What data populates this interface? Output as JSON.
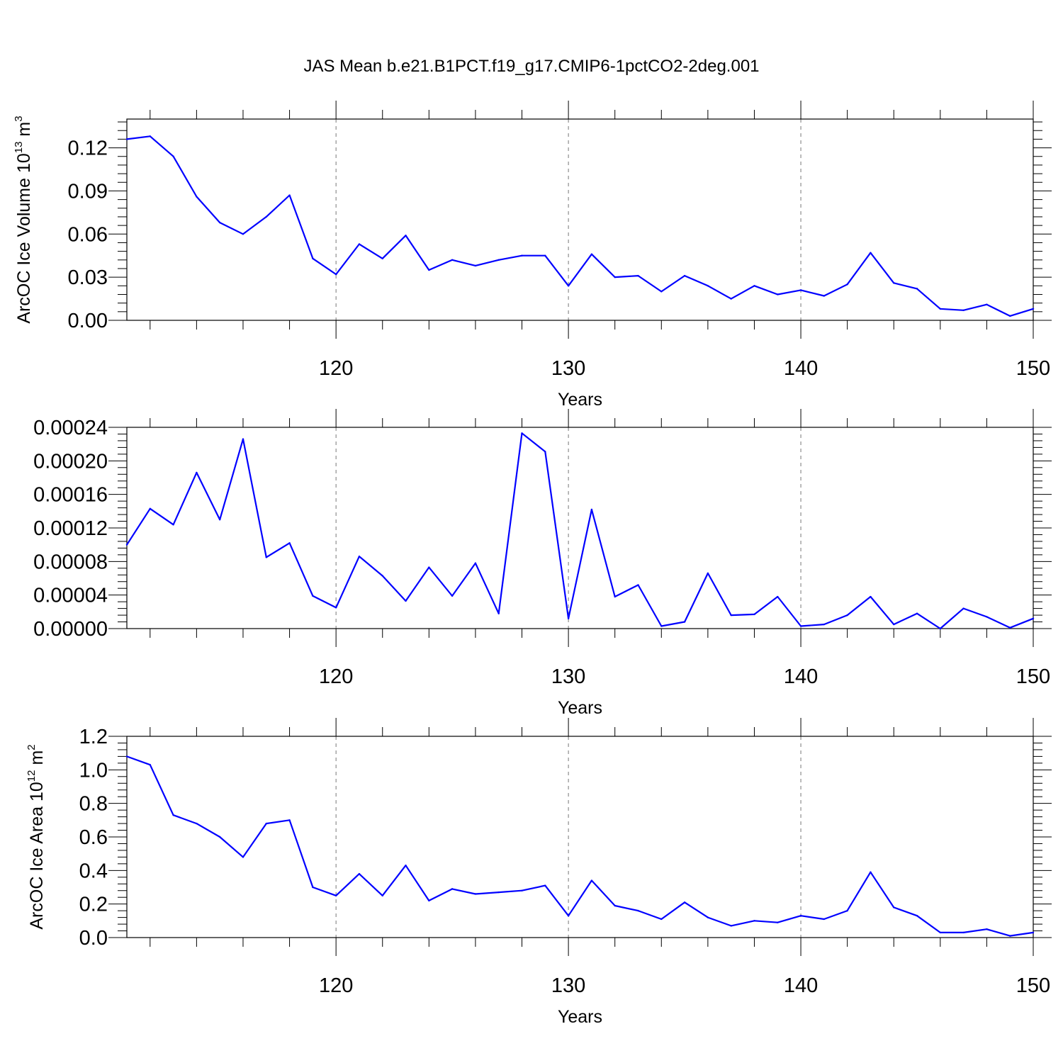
{
  "title": "JAS Mean b.e21.B1PCT.f19_g17.CMIP6-1pctCO2-2deg.001",
  "colors": {
    "line": "#0000ff",
    "axis": "#000000",
    "grid": "#777777"
  },
  "chart_data": [
    {
      "type": "line",
      "xlabel": "Years",
      "ylabel": {
        "prefix": "ArcOC Ice Volume 10",
        "exp": "13",
        "unit": " m",
        "unit_exp": "3"
      },
      "xlim": [
        111,
        150
      ],
      "ylim": [
        0,
        0.14
      ],
      "xticks": [
        120,
        130,
        140,
        150
      ],
      "xtick_labels": [
        "120",
        "130",
        "140",
        "150"
      ],
      "yticks": [
        0,
        0.03,
        0.06,
        0.09,
        0.12
      ],
      "ytick_labels": [
        "0.00",
        "0.03",
        "0.06",
        "0.09",
        "0.12"
      ],
      "grid": "dashed vertical lines at 120, 130, 140",
      "x": [
        111,
        112,
        113,
        114,
        115,
        116,
        117,
        118,
        119,
        120,
        121,
        122,
        123,
        124,
        125,
        126,
        127,
        128,
        129,
        130,
        131,
        132,
        133,
        134,
        135,
        136,
        137,
        138,
        139,
        140,
        141,
        142,
        143,
        144,
        145,
        146,
        147,
        148,
        149,
        150
      ],
      "values": [
        0.126,
        0.128,
        0.114,
        0.086,
        0.068,
        0.06,
        0.072,
        0.087,
        0.043,
        0.032,
        0.053,
        0.043,
        0.059,
        0.035,
        0.042,
        0.038,
        0.042,
        0.045,
        0.045,
        0.024,
        0.046,
        0.03,
        0.031,
        0.02,
        0.031,
        0.024,
        0.015,
        0.024,
        0.018,
        0.021,
        0.017,
        0.025,
        0.047,
        0.026,
        0.022,
        0.008,
        0.007,
        0.011,
        0.003,
        0.008
      ]
    },
    {
      "type": "line",
      "xlabel": "Years",
      "ylabel": null,
      "xlim": [
        111,
        150
      ],
      "ylim": [
        0,
        0.00024
      ],
      "xticks": [
        120,
        130,
        140,
        150
      ],
      "xtick_labels": [
        "120",
        "130",
        "140",
        "150"
      ],
      "yticks": [
        0,
        4e-05,
        8e-05,
        0.00012,
        0.00016,
        0.0002,
        0.00024
      ],
      "ytick_labels": [
        "0.00000",
        "0.00004",
        "0.00008",
        "0.00012",
        "0.00016",
        "0.00020",
        "0.00024"
      ],
      "grid": "dashed vertical lines at 120, 130, 140",
      "x": [
        111,
        112,
        113,
        114,
        115,
        116,
        117,
        118,
        119,
        120,
        121,
        122,
        123,
        124,
        125,
        126,
        127,
        128,
        129,
        130,
        131,
        132,
        133,
        134,
        135,
        136,
        137,
        138,
        139,
        140,
        141,
        142,
        143,
        144,
        145,
        146,
        147,
        148,
        149,
        150
      ],
      "values": [
        0.0001,
        0.000143,
        0.000124,
        0.000186,
        0.00013,
        0.000226,
        8.5e-05,
        0.000102,
        3.9e-05,
        2.5e-05,
        8.6e-05,
        6.3e-05,
        3.3e-05,
        7.3e-05,
        3.9e-05,
        7.8e-05,
        1.8e-05,
        0.000233,
        0.000211,
        1.2e-05,
        0.000142,
        3.8e-05,
        5.2e-05,
        3e-06,
        8e-06,
        6.6e-05,
        1.6e-05,
        1.7e-05,
        3.8e-05,
        3e-06,
        5e-06,
        1.6e-05,
        3.8e-05,
        5e-06,
        1.8e-05,
        0.0,
        2.4e-05,
        1.4e-05,
        1e-06,
        1.2e-05
      ]
    },
    {
      "type": "line",
      "xlabel": "Years",
      "ylabel": {
        "prefix": "ArcOC Ice Area 10",
        "exp": "12",
        "unit": " m",
        "unit_exp": "2"
      },
      "xlim": [
        111,
        150
      ],
      "ylim": [
        0,
        1.2
      ],
      "xticks": [
        120,
        130,
        140,
        150
      ],
      "xtick_labels": [
        "120",
        "130",
        "140",
        "150"
      ],
      "yticks": [
        0,
        0.2,
        0.4,
        0.6,
        0.8,
        1.0,
        1.2
      ],
      "ytick_labels": [
        "0.0",
        "0.2",
        "0.4",
        "0.6",
        "0.8",
        "1.0",
        "1.2"
      ],
      "grid": "dashed vertical lines at 120, 130, 140",
      "x": [
        111,
        112,
        113,
        114,
        115,
        116,
        117,
        118,
        119,
        120,
        121,
        122,
        123,
        124,
        125,
        126,
        127,
        128,
        129,
        130,
        131,
        132,
        133,
        134,
        135,
        136,
        137,
        138,
        139,
        140,
        141,
        142,
        143,
        144,
        145,
        146,
        147,
        148,
        149,
        150
      ],
      "values": [
        1.08,
        1.03,
        0.73,
        0.68,
        0.6,
        0.48,
        0.68,
        0.7,
        0.3,
        0.25,
        0.38,
        0.25,
        0.43,
        0.22,
        0.29,
        0.26,
        0.27,
        0.28,
        0.31,
        0.13,
        0.34,
        0.19,
        0.16,
        0.11,
        0.21,
        0.12,
        0.07,
        0.1,
        0.09,
        0.13,
        0.11,
        0.16,
        0.39,
        0.18,
        0.13,
        0.03,
        0.03,
        0.05,
        0.01,
        0.03
      ]
    }
  ]
}
